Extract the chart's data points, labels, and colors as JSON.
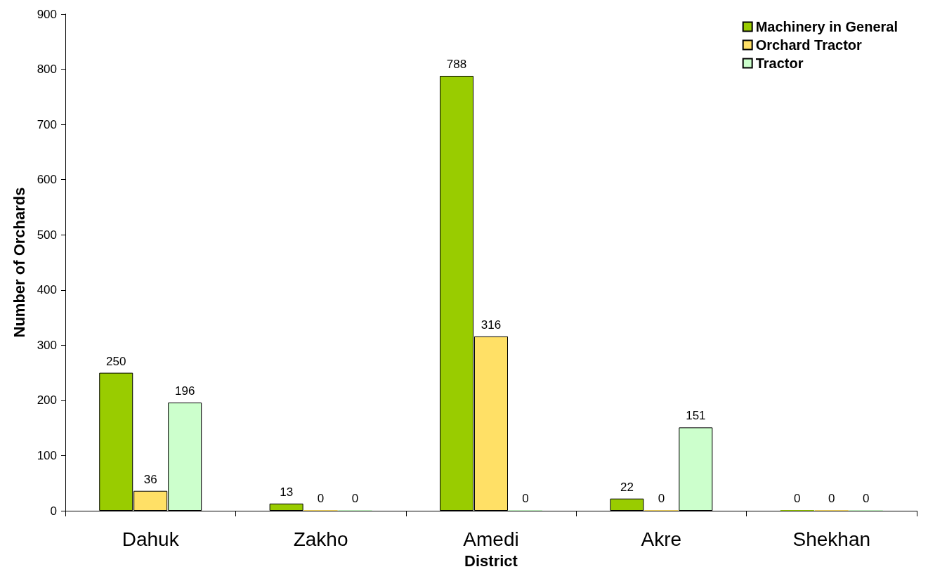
{
  "chart_data": {
    "type": "bar",
    "xlabel": "District",
    "ylabel": "Number of Orchards",
    "categories": [
      "Dahuk",
      "Zakho",
      "Amedi",
      "Akre",
      "Shekhan"
    ],
    "series": [
      {
        "name": "Machinery in General",
        "color": "#99cc00",
        "values": [
          250,
          13,
          788,
          22,
          0
        ]
      },
      {
        "name": "Orchard Tractor",
        "color": "#ffe066",
        "values": [
          36,
          0,
          316,
          0,
          0
        ]
      },
      {
        "name": "Tractor",
        "color": "#ccffcc",
        "values": [
          196,
          0,
          0,
          151,
          0
        ]
      }
    ],
    "ylim": [
      0,
      900
    ],
    "yticks": [
      0,
      100,
      200,
      300,
      400,
      500,
      600,
      700,
      800,
      900
    ],
    "data_labels": true,
    "grid": false,
    "legend": "top right"
  }
}
